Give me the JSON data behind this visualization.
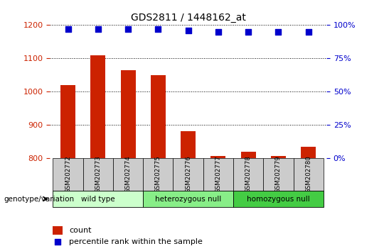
{
  "title": "GDS2811 / 1448162_at",
  "samples": [
    "GSM202772",
    "GSM202773",
    "GSM202774",
    "GSM202775",
    "GSM202776",
    "GSM202777",
    "GSM202778",
    "GSM202779",
    "GSM202780"
  ],
  "counts": [
    1020,
    1110,
    1065,
    1050,
    882,
    806,
    820,
    806,
    835
  ],
  "percentile_ranks": [
    97,
    97,
    97,
    97,
    96,
    95,
    95,
    95,
    95
  ],
  "ylim_left": [
    800,
    1200
  ],
  "ylim_right": [
    0,
    100
  ],
  "yticks_left": [
    800,
    900,
    1000,
    1100,
    1200
  ],
  "yticks_right": [
    0,
    25,
    50,
    75,
    100
  ],
  "bar_color": "#cc2200",
  "dot_color": "#0000cc",
  "groups": [
    {
      "label": "wild type",
      "indices": [
        0,
        1,
        2
      ],
      "color": "#ccffcc"
    },
    {
      "label": "heterozygous null",
      "indices": [
        3,
        4,
        5
      ],
      "color": "#88ee88"
    },
    {
      "label": "homozygous null",
      "indices": [
        6,
        7,
        8
      ],
      "color": "#44cc44"
    }
  ],
  "xlabel_genotype": "genotype/variation",
  "legend_count_label": "count",
  "legend_pct_label": "percentile rank within the sample",
  "tick_label_color_left": "#cc2200",
  "tick_label_color_right": "#0000cc",
  "bg_plot": "#ffffff",
  "bg_xtick": "#cccccc"
}
